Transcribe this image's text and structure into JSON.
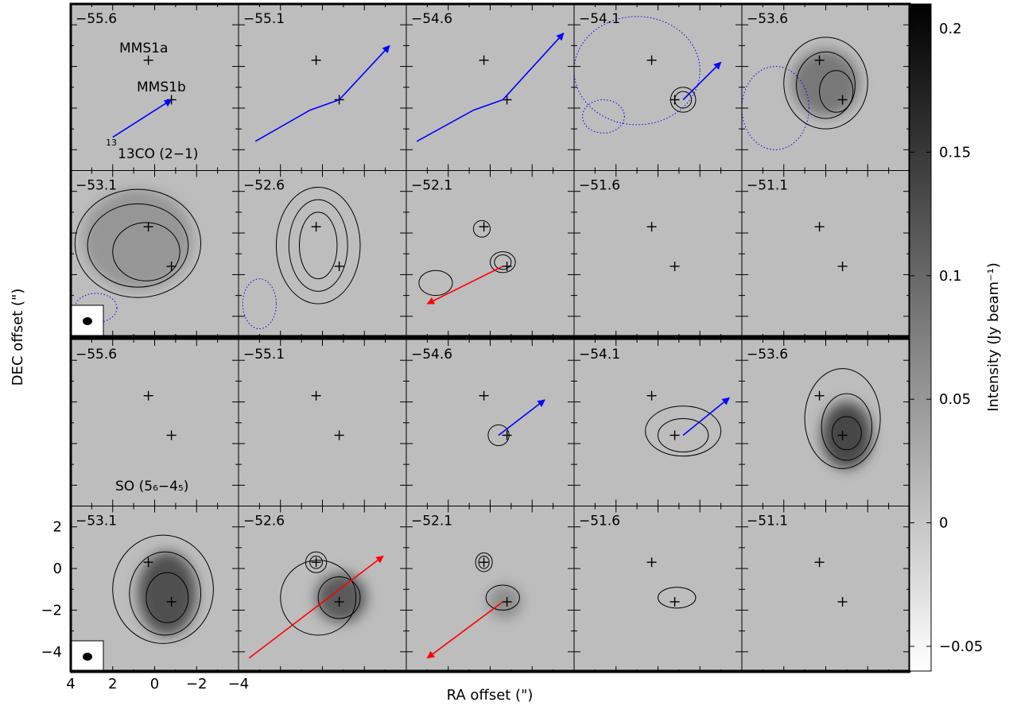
{
  "figure": {
    "xlabel": "RA offset (\")",
    "ylabel": "DEC offset (\")",
    "colorbar_label": "Intensity (Jy beam⁻¹)",
    "source_labels": [
      "MMS1a",
      "MMS1b"
    ]
  },
  "panels": {
    "block_labels": [
      {
        "species": "13CO (2−1)",
        "block": "top"
      },
      {
        "species": "SO (5₆−4₅)",
        "block": "bottom"
      }
    ]
  },
  "chart_data": {
    "type": "heatmap",
    "grid": {
      "rows": 4,
      "cols": 5
    },
    "velocities_top": [
      "−55.6",
      "−55.1",
      "−54.6",
      "−54.1",
      "−53.6",
      "−53.1",
      "−52.6",
      "−52.1",
      "−51.6",
      "−51.1"
    ],
    "velocities_bottom": [
      "−55.6",
      "−55.1",
      "−54.6",
      "−54.1",
      "−53.6",
      "−53.1",
      "−52.6",
      "−52.1",
      "−51.6",
      "−51.1"
    ],
    "xlim": [
      4,
      -4
    ],
    "ylim": [
      -5,
      3
    ],
    "x_tick_labels": [
      "4",
      "2",
      "0",
      "−2",
      "−4"
    ],
    "y_tick_labels": [
      "2",
      "0",
      "−2",
      "−4"
    ],
    "colorbar": {
      "range": [
        -0.06,
        0.21
      ],
      "tick_values": [
        0.2,
        0.15,
        0.1,
        0.05,
        0,
        -0.05
      ],
      "tick_labels": [
        "0.2",
        "0.15",
        "0.1",
        "0.05",
        "0",
        "−0.05"
      ],
      "colormap": [
        "#ffffff",
        "#000000"
      ]
    },
    "sources": [
      {
        "name": "MMS1a",
        "x": 0.3,
        "y": 0.3
      },
      {
        "name": "MMS1b",
        "x": -0.8,
        "y": -1.6
      }
    ],
    "outflow_arrows": [
      {
        "panel": 0,
        "color": "blue",
        "from": [
          2.0,
          -3.4
        ],
        "to": [
          -0.8,
          -1.6
        ]
      },
      {
        "panel": 1,
        "color": "blue",
        "pts": [
          [
            3.2,
            -3.6
          ],
          [
            0.6,
            -2.1
          ],
          [
            -0.8,
            -1.6
          ],
          [
            -3.2,
            1.0
          ]
        ]
      },
      {
        "panel": 2,
        "color": "blue",
        "pts": [
          [
            3.5,
            -3.6
          ],
          [
            0.8,
            -2.1
          ],
          [
            -0.6,
            -1.6
          ],
          [
            -3.5,
            1.6
          ]
        ]
      },
      {
        "panel": 3,
        "color": "blue",
        "from": [
          -1.2,
          -1.6
        ],
        "to": [
          -3.0,
          0.2
        ]
      },
      {
        "panel": 7,
        "color": "red",
        "from": [
          -0.6,
          -1.6
        ],
        "to": [
          3.0,
          -3.4
        ]
      },
      {
        "panel": 12,
        "color": "blue",
        "from": [
          -0.4,
          -1.6
        ],
        "to": [
          -2.6,
          0.1
        ]
      },
      {
        "panel": 13,
        "color": "blue",
        "from": [
          -1.2,
          -1.6
        ],
        "to": [
          -3.4,
          0.2
        ]
      },
      {
        "panel": 16,
        "color": "red",
        "from": [
          3.5,
          -4.3
        ],
        "to": [
          -2.9,
          0.6
        ]
      },
      {
        "panel": 17,
        "color": "red",
        "from": [
          -0.6,
          -1.6
        ],
        "to": [
          3.0,
          -4.3
        ]
      }
    ],
    "colors": {
      "blue_arrow": "#0000ff",
      "red_arrow": "#ff0000",
      "negative_contour": "#0000ff",
      "contour": "#000000"
    }
  }
}
